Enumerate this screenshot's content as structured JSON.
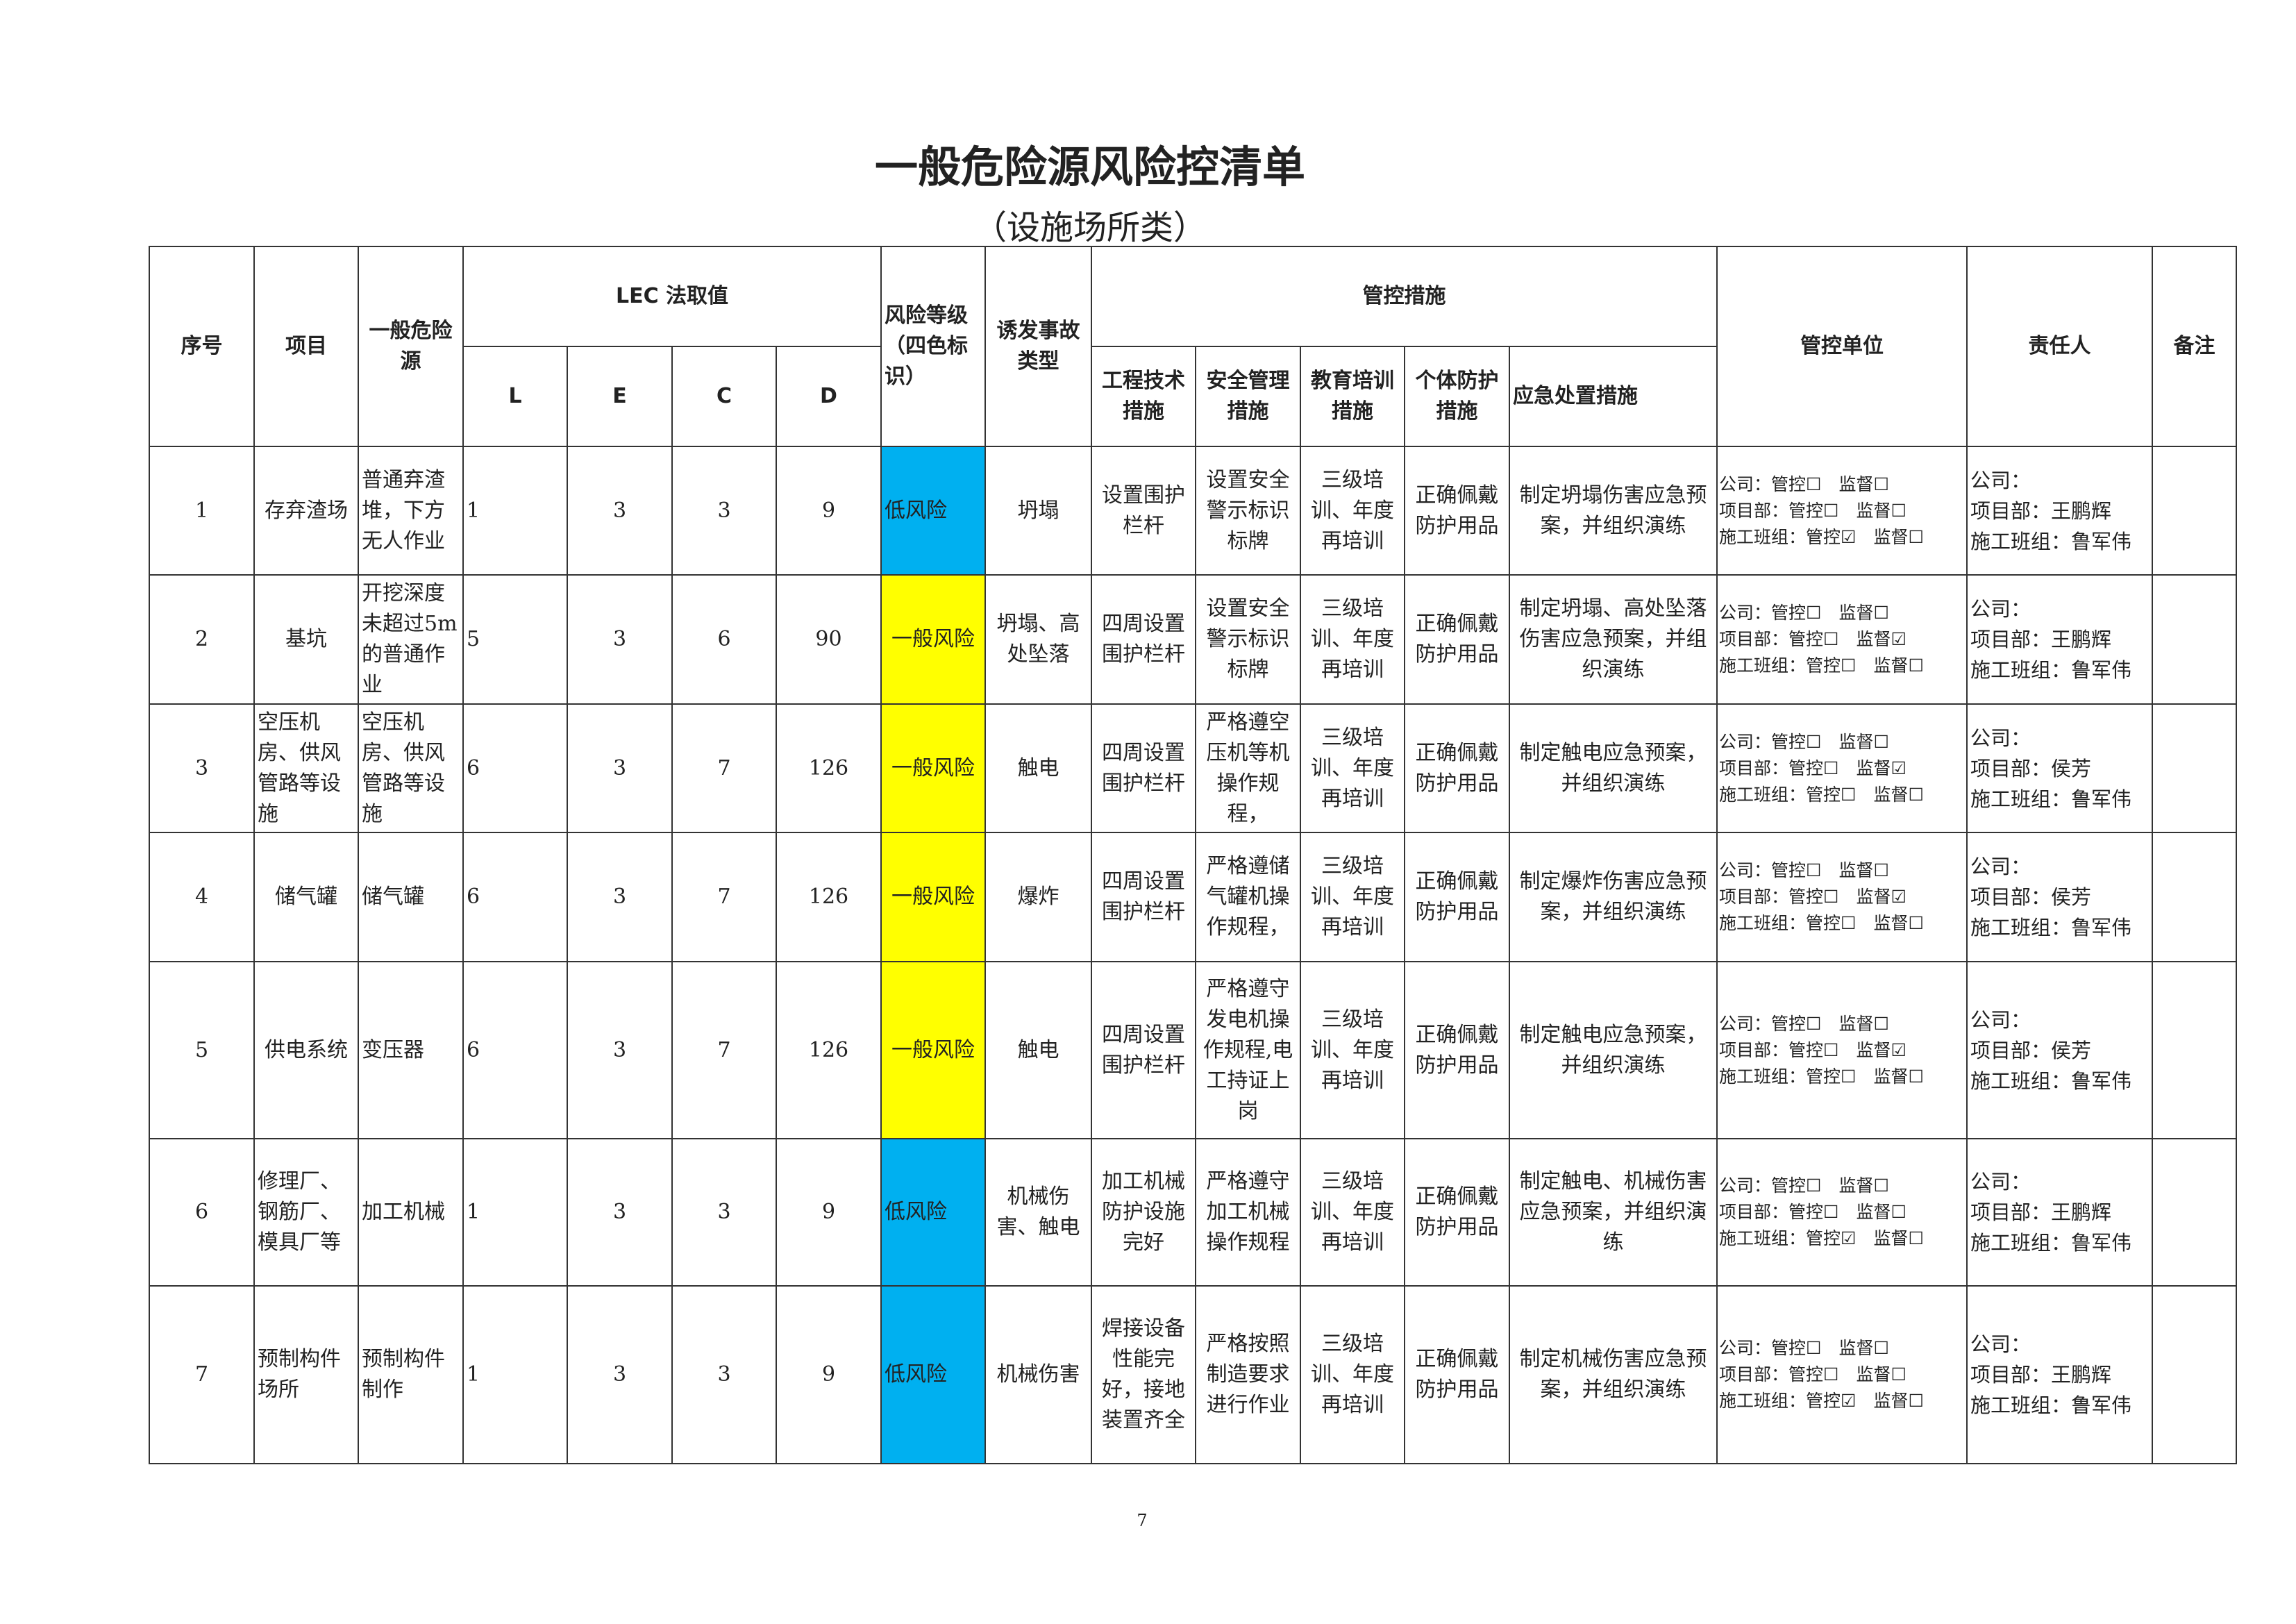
{
  "title": "一般危险源风险控清单",
  "subtitle": "（设施场所类）",
  "headers": {
    "seq": "序号",
    "item": "项目",
    "hazard": "一般危险源",
    "lec": "LEC 法取值",
    "L": "L",
    "E": "E",
    "C": "C",
    "D": "D",
    "risk": "风险等级（四色标识）",
    "accident": "诱发事故类型",
    "measures": "管控措施",
    "eng": "工程技术措施",
    "safety": "安全管理措施",
    "edu": "教育培训措施",
    "ppe": "个体防护措施",
    "emergency": "应急处置措施",
    "unit": "管控单位",
    "person": "责任人",
    "note": "备注"
  },
  "labels": {
    "company": "公司：",
    "project": "项目部：",
    "team": "施工班组：",
    "control": "管控",
    "supervise": "监督",
    "checked": "☑",
    "unchecked": "☐"
  },
  "colors": {
    "low_risk": "#00b0f0",
    "general_risk": "#ffff00"
  },
  "rows": [
    {
      "seq": "1",
      "item": "存弃渣场",
      "hazard": "普通弃渣堆，下方无人作业",
      "L": "1",
      "E": "3",
      "C": "3",
      "D": "9",
      "risk": "低风险",
      "risk_level": "low",
      "accident": "坍塌",
      "eng": "设置围护栏杆",
      "safety": "设置安全警示标识标牌",
      "edu": "三级培训、年度再培训",
      "ppe": "正确佩戴防护用品",
      "emergency": "制定坍塌伤害应急预案，并组织演练",
      "checks": {
        "company_control": false,
        "company_supervise": false,
        "project_control": false,
        "project_supervise": false,
        "team_control": true,
        "team_supervise": false
      },
      "person": {
        "company": "",
        "project": "王鹏辉",
        "team": "鲁军伟"
      },
      "note": ""
    },
    {
      "seq": "2",
      "item": "基坑",
      "hazard": "开挖深度未超过5m的普通作业",
      "L": "5",
      "E": "3",
      "C": "6",
      "D": "90",
      "risk": "一般风险",
      "risk_level": "general",
      "accident": "坍塌、高处坠落",
      "eng": "四周设置围护栏杆",
      "safety": "设置安全警示标识标牌",
      "edu": "三级培训、年度再培训",
      "ppe": "正确佩戴防护用品",
      "emergency": "制定坍塌、高处坠落伤害应急预案，并组织演练",
      "checks": {
        "company_control": false,
        "company_supervise": false,
        "project_control": false,
        "project_supervise": true,
        "team_control": false,
        "team_supervise": false
      },
      "person": {
        "company": "",
        "project": "王鹏辉",
        "team": "鲁军伟"
      },
      "note": ""
    },
    {
      "seq": "3",
      "item": "空压机房、供风管路等设施",
      "hazard": "空压机房、供风管路等设施",
      "L": "6",
      "E": "3",
      "C": "7",
      "D": "126",
      "risk": "一般风险",
      "risk_level": "general",
      "accident": "触电",
      "eng": "四周设置围护栏杆",
      "safety": "严格遵空压机等机操作规程，",
      "edu": "三级培训、年度再培训",
      "ppe": "正确佩戴防护用品",
      "emergency": "制定触电应急预案，并组织演练",
      "checks": {
        "company_control": false,
        "company_supervise": false,
        "project_control": false,
        "project_supervise": true,
        "team_control": false,
        "team_supervise": false
      },
      "person": {
        "company": "",
        "project": "侯芳",
        "team": "鲁军伟"
      },
      "note": ""
    },
    {
      "seq": "4",
      "item": "储气罐",
      "hazard": "储气罐",
      "L": "6",
      "E": "3",
      "C": "7",
      "D": "126",
      "risk": "一般风险",
      "risk_level": "general",
      "accident": "爆炸",
      "eng": "四周设置围护栏杆",
      "safety": "严格遵储气罐机操作规程，",
      "edu": "三级培训、年度再培训",
      "ppe": "正确佩戴防护用品",
      "emergency": "制定爆炸伤害应急预案，并组织演练",
      "checks": {
        "company_control": false,
        "company_supervise": false,
        "project_control": false,
        "project_supervise": true,
        "team_control": false,
        "team_supervise": false
      },
      "person": {
        "company": "",
        "project": "侯芳",
        "team": "鲁军伟"
      },
      "note": ""
    },
    {
      "seq": "5",
      "item": "供电系统",
      "hazard": "变压器",
      "L": "6",
      "E": "3",
      "C": "7",
      "D": "126",
      "risk": "一般风险",
      "risk_level": "general",
      "accident": "触电",
      "eng": "四周设置围护栏杆",
      "safety": "严格遵守发电机操作规程,电工持证上岗",
      "edu": "三级培训、年度再培训",
      "ppe": "正确佩戴防护用品",
      "emergency": "制定触电应急预案，并组织演练",
      "checks": {
        "company_control": false,
        "company_supervise": false,
        "project_control": false,
        "project_supervise": true,
        "team_control": false,
        "team_supervise": false
      },
      "person": {
        "company": "",
        "project": "侯芳",
        "team": "鲁军伟"
      },
      "note": ""
    },
    {
      "seq": "6",
      "item": "修理厂、钢筋厂、模具厂等",
      "hazard": "加工机械",
      "L": "1",
      "E": "3",
      "C": "3",
      "D": "9",
      "risk": "低风险",
      "risk_level": "low",
      "accident": "机械伤害、触电",
      "eng": "加工机械防护设施完好",
      "safety": "严格遵守加工机械操作规程",
      "edu": "三级培训、年度再培训",
      "ppe": "正确佩戴防护用品",
      "emergency": "制定触电、机械伤害应急预案，并组织演练",
      "checks": {
        "company_control": false,
        "company_supervise": false,
        "project_control": false,
        "project_supervise": false,
        "team_control": true,
        "team_supervise": false
      },
      "person": {
        "company": "",
        "project": "王鹏辉",
        "team": "鲁军伟"
      },
      "note": ""
    },
    {
      "seq": "7",
      "item": "预制构件场所",
      "hazard": "预制构件制作",
      "L": "1",
      "E": "3",
      "C": "3",
      "D": "9",
      "risk": "低风险",
      "risk_level": "low",
      "accident": "机械伤害",
      "eng": "焊接设备性能完好，接地装置齐全",
      "safety": "严格按照制造要求进行作业",
      "edu": "三级培训、年度再培训",
      "ppe": "正确佩戴防护用品",
      "emergency": "制定机械伤害应急预案，并组织演练",
      "checks": {
        "company_control": false,
        "company_supervise": false,
        "project_control": false,
        "project_supervise": false,
        "team_control": true,
        "team_supervise": false
      },
      "person": {
        "company": "",
        "project": "王鹏辉",
        "team": "鲁军伟"
      },
      "note": ""
    }
  ],
  "page_number": "7"
}
